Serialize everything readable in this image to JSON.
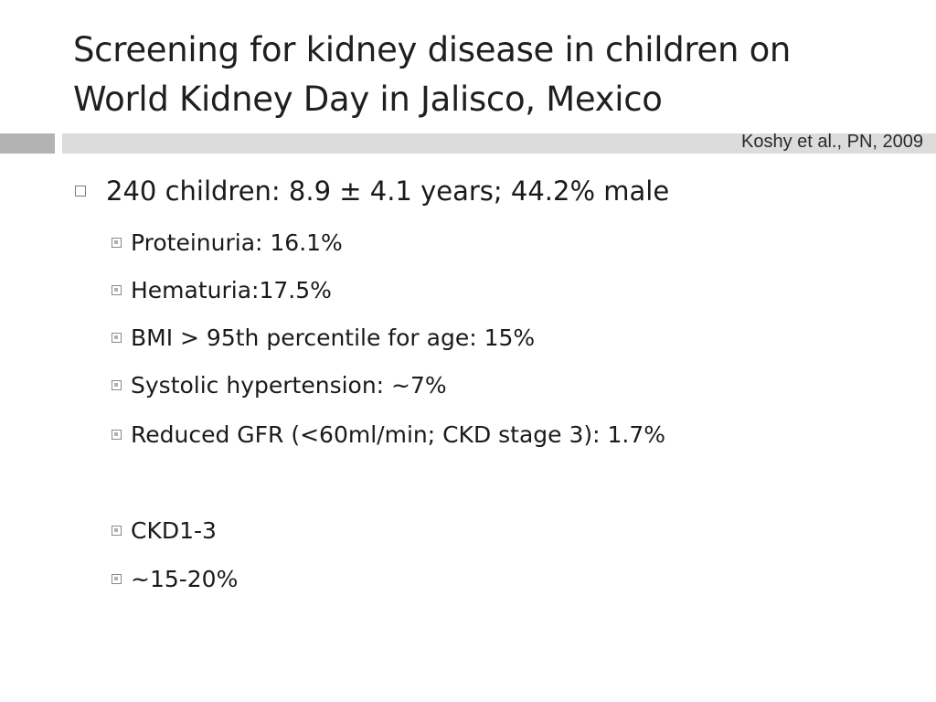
{
  "slide": {
    "title_line1": "Screening for kidney disease in children on",
    "title_line2": "World Kidney Day in Jalisco, Mexico",
    "citation": "Koshy et al., PN, 2009",
    "main_bullet": "240 children: 8.9 ± 4.1 years; 44.2% male",
    "sub_bullets": [
      "Proteinuria: 16.1%",
      "Hematuria:17.5%",
      "BMI > 95th percentile for age: 15%",
      "Systolic hypertension: ~7%",
      "Reduced GFR (<60ml/min; CKD stage 3): 1.7%"
    ],
    "extra_bullets": [
      "CKD1-3",
      "~15-20%"
    ]
  }
}
